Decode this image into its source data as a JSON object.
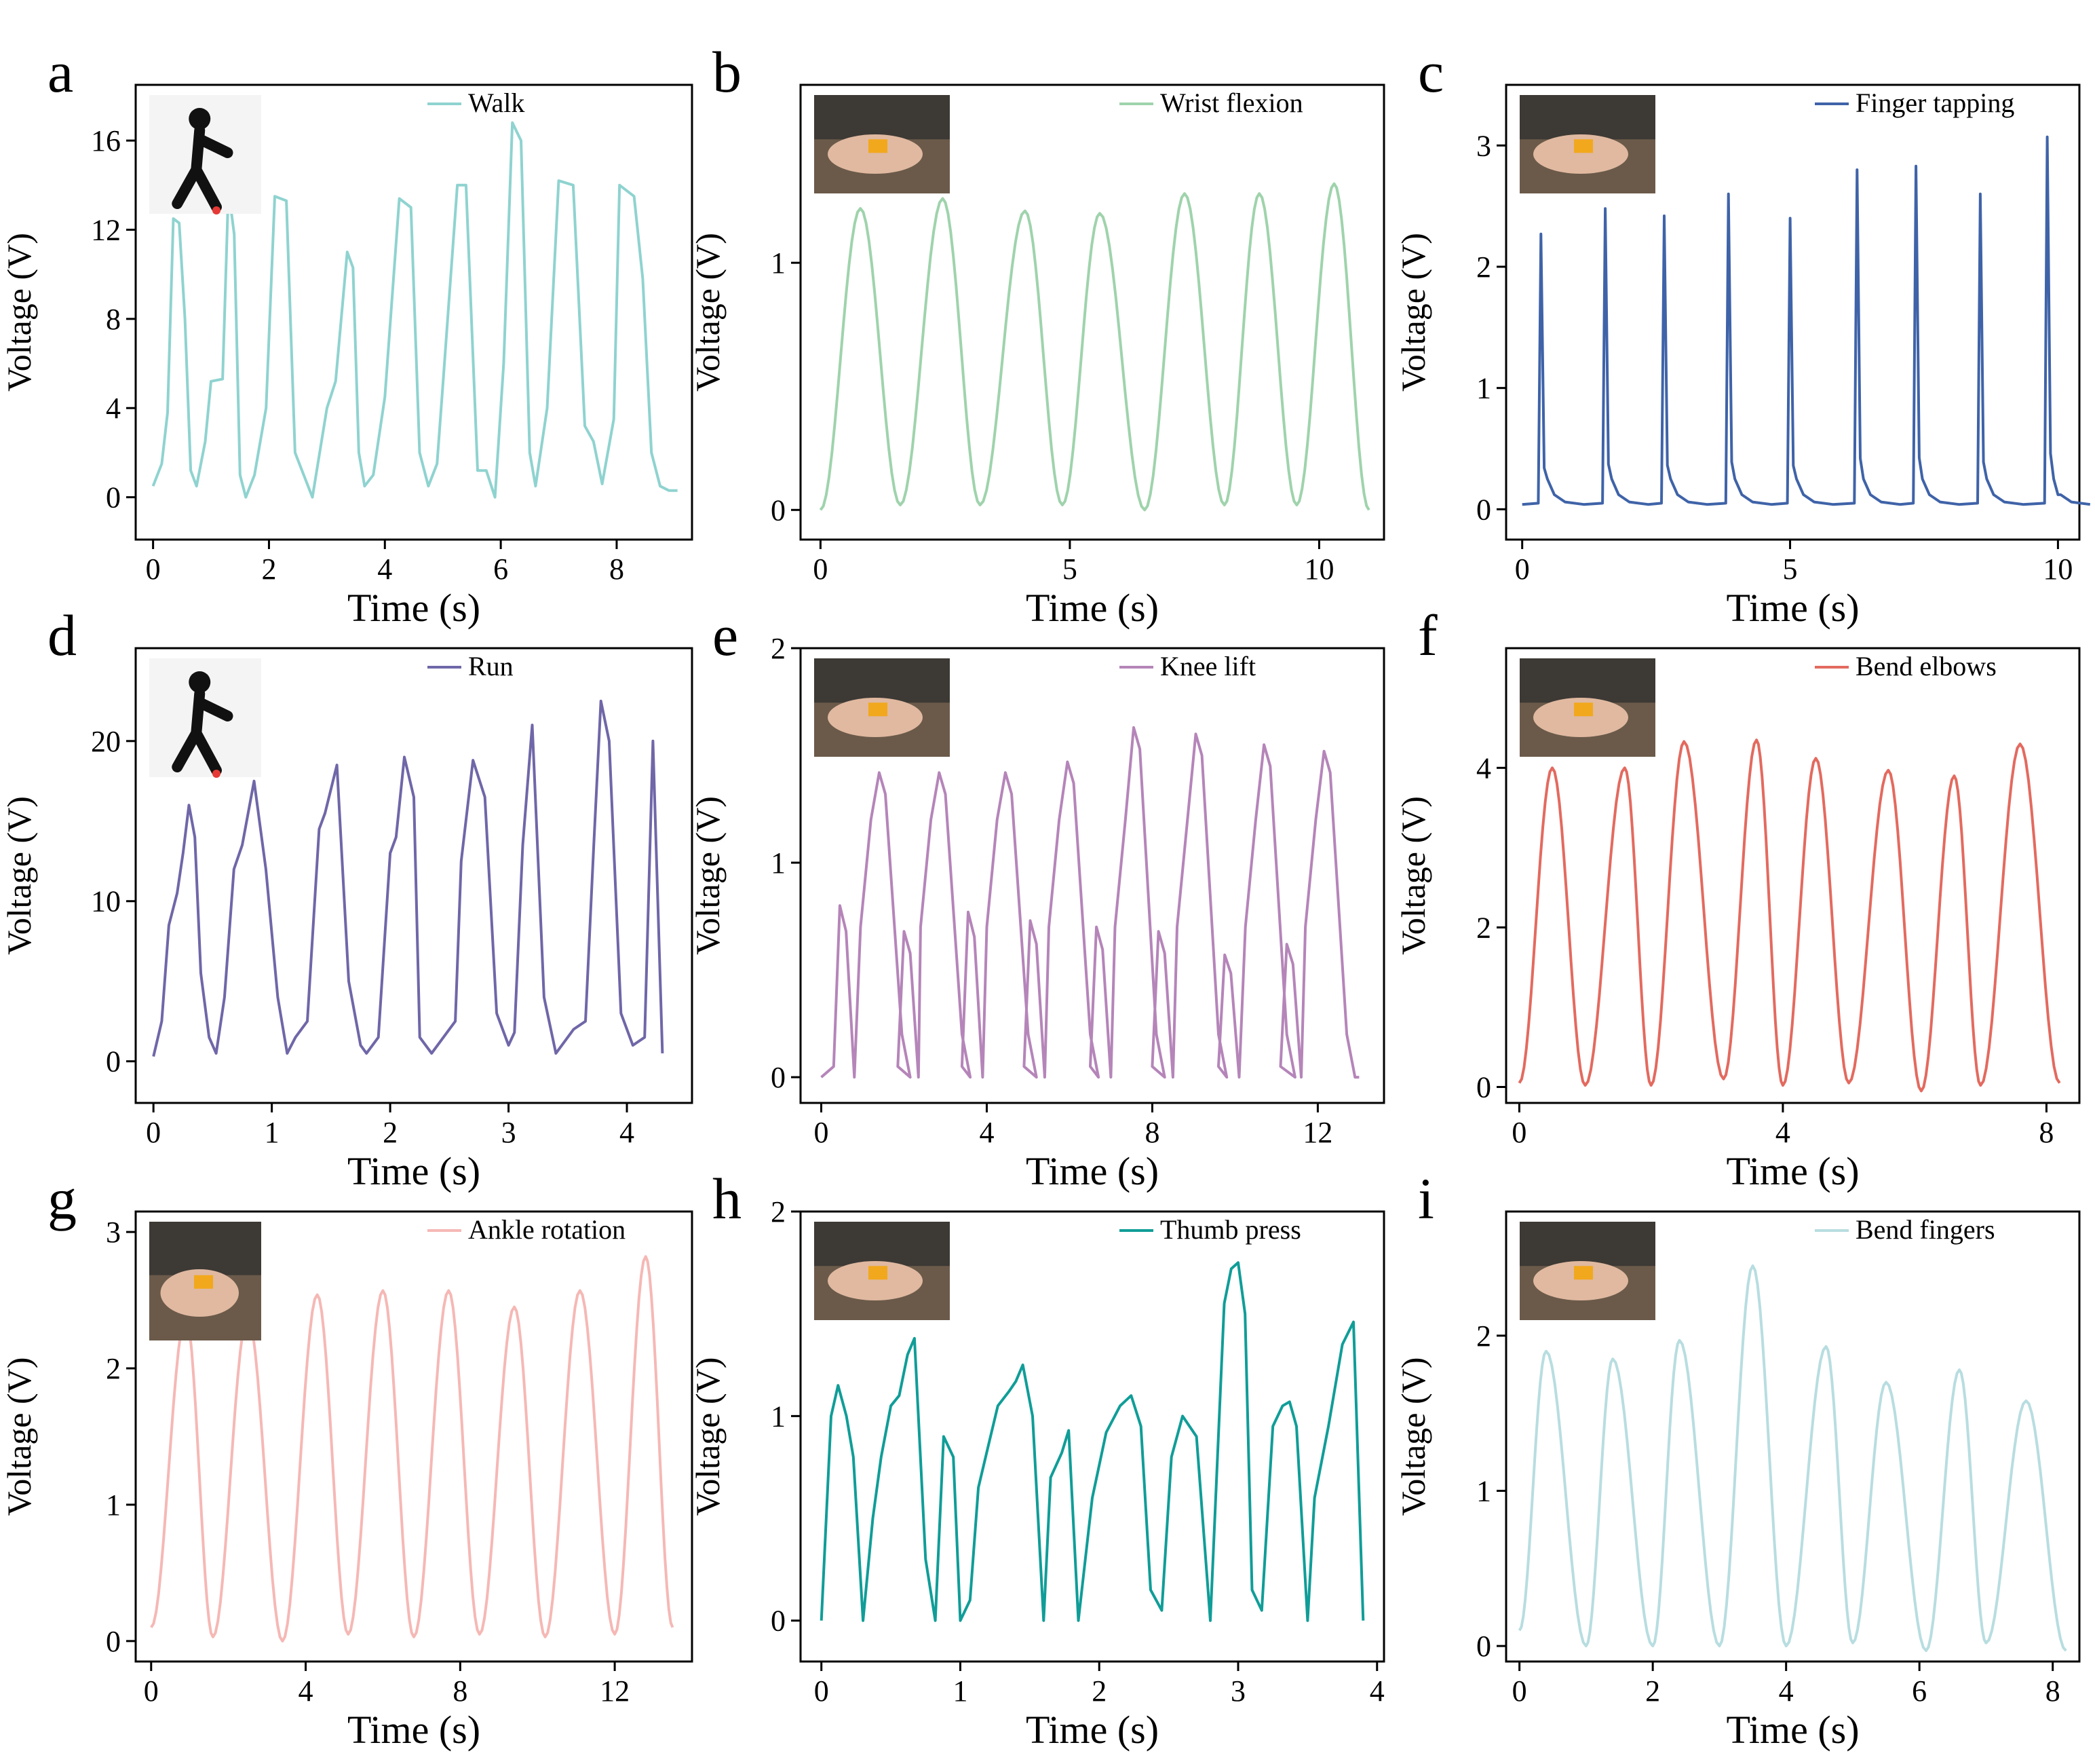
{
  "figure": {
    "description_labels": [
      "a",
      "b",
      "c",
      "d",
      "e",
      "f",
      "g",
      "h",
      "i"
    ]
  },
  "chart_data": [
    {
      "panel": "a",
      "type": "line",
      "legend": "Walk",
      "color": "#8fd3d0",
      "xlabel": "Time (s)",
      "ylabel": "Voltage (V)",
      "xlim": [
        -0.3,
        9.3
      ],
      "ylim": [
        -1.9,
        18.5
      ],
      "xticks": [
        0,
        2,
        4,
        6,
        8
      ],
      "yticks": [
        0,
        4,
        8,
        12,
        16
      ],
      "inset": "walking-person-icon",
      "x": [
        0.0,
        0.15,
        0.25,
        0.35,
        0.45,
        0.55,
        0.65,
        0.75,
        0.9,
        1.0,
        1.2,
        1.3,
        1.4,
        1.5,
        1.6,
        1.75,
        1.95,
        2.1,
        2.3,
        2.45,
        2.6,
        2.75,
        3.0,
        3.15,
        3.35,
        3.45,
        3.55,
        3.65,
        3.8,
        4.0,
        4.25,
        4.45,
        4.6,
        4.75,
        4.9,
        5.0,
        5.25,
        5.4,
        5.6,
        5.75,
        5.9,
        6.05,
        6.2,
        6.35,
        6.5,
        6.6,
        6.8,
        7.0,
        7.25,
        7.45,
        7.6,
        7.75,
        7.95,
        8.05,
        8.3,
        8.45,
        8.6,
        8.75,
        8.9,
        9.05
      ],
      "y": [
        0.5,
        1.5,
        3.8,
        12.5,
        12.3,
        8.0,
        1.2,
        0.5,
        2.5,
        5.2,
        5.3,
        13.8,
        11.8,
        1.0,
        0.0,
        1.0,
        4.0,
        13.5,
        13.3,
        2.0,
        1.0,
        0.0,
        4.0,
        5.2,
        11.0,
        10.3,
        2.0,
        0.5,
        1.0,
        4.5,
        13.4,
        13.0,
        2.0,
        0.5,
        1.5,
        5.0,
        14.0,
        14.0,
        1.2,
        1.2,
        0.0,
        6.0,
        16.8,
        16.0,
        2.0,
        0.5,
        4.0,
        14.2,
        14.0,
        3.2,
        2.5,
        0.6,
        3.5,
        14.0,
        13.5,
        9.8,
        2.0,
        0.5,
        0.3,
        0.3
      ]
    },
    {
      "panel": "b",
      "type": "line",
      "legend": "Wrist flexion",
      "color": "#9fd3ac",
      "xlabel": "Time (s)",
      "ylabel": "Voltage (V)",
      "xlim": [
        -0.4,
        11.3
      ],
      "ylim": [
        -0.12,
        1.72
      ],
      "xticks": [
        0,
        5,
        10
      ],
      "yticks": [
        0,
        1
      ],
      "inset": "wrist-photo",
      "peaks": [
        [
          0.8,
          1.22
        ],
        [
          2.45,
          1.26
        ],
        [
          4.1,
          1.21
        ],
        [
          5.6,
          1.2
        ],
        [
          7.3,
          1.28
        ],
        [
          8.8,
          1.28
        ],
        [
          10.3,
          1.32
        ]
      ],
      "troughs": [
        [
          0.0,
          0.0
        ],
        [
          1.6,
          0.02
        ],
        [
          3.2,
          0.02
        ],
        [
          4.85,
          0.02
        ],
        [
          6.5,
          0.0
        ],
        [
          8.1,
          0.02
        ],
        [
          9.55,
          0.02
        ],
        [
          11.0,
          0.0
        ]
      ]
    },
    {
      "panel": "c",
      "type": "line",
      "legend": "Finger tapping",
      "color": "#3f63a8",
      "xlabel": "Time (s)",
      "ylabel": "Voltage (V)",
      "xlim": [
        -0.3,
        10.4
      ],
      "ylim": [
        -0.25,
        3.5
      ],
      "xticks": [
        0,
        5,
        10
      ],
      "yticks": [
        0,
        1,
        2,
        3
      ],
      "inset": "finger-photo",
      "baseline": 0.04,
      "spikes": [
        [
          0.35,
          2.27
        ],
        [
          1.55,
          2.48
        ],
        [
          2.65,
          2.42
        ],
        [
          3.85,
          2.6
        ],
        [
          5.0,
          2.4
        ],
        [
          6.25,
          2.8
        ],
        [
          7.35,
          2.83
        ],
        [
          8.55,
          2.6
        ],
        [
          9.8,
          3.07
        ]
      ]
    },
    {
      "panel": "d",
      "type": "line",
      "legend": "Run",
      "color": "#6f67a8",
      "xlabel": "Time (s)",
      "ylabel": "Voltage (V)",
      "xlim": [
        -0.15,
        4.55
      ],
      "ylim": [
        -2.6,
        25.8
      ],
      "xticks": [
        0,
        1,
        2,
        3,
        4
      ],
      "yticks": [
        0,
        10,
        20
      ],
      "inset": "running-person-icon",
      "x": [
        0.0,
        0.07,
        0.13,
        0.2,
        0.25,
        0.3,
        0.35,
        0.4,
        0.47,
        0.53,
        0.6,
        0.68,
        0.75,
        0.85,
        0.95,
        1.05,
        1.13,
        1.2,
        1.3,
        1.4,
        1.45,
        1.55,
        1.65,
        1.75,
        1.8,
        1.9,
        2.0,
        2.05,
        2.12,
        2.2,
        2.25,
        2.35,
        2.45,
        2.55,
        2.6,
        2.7,
        2.8,
        2.9,
        3.0,
        3.05,
        3.12,
        3.2,
        3.3,
        3.4,
        3.55,
        3.65,
        3.72,
        3.78,
        3.85,
        3.95,
        4.05,
        4.15,
        4.22,
        4.3
      ],
      "y": [
        0.3,
        2.5,
        8.5,
        10.5,
        13.0,
        16.0,
        14.0,
        5.5,
        1.5,
        0.5,
        4.0,
        12.0,
        13.5,
        17.5,
        12.0,
        4.0,
        0.5,
        1.5,
        2.5,
        14.5,
        15.5,
        18.5,
        5.0,
        1.0,
        0.5,
        1.5,
        13.0,
        14.0,
        19.0,
        16.5,
        1.5,
        0.5,
        1.5,
        2.5,
        12.5,
        18.8,
        16.5,
        3.0,
        1.0,
        1.8,
        13.5,
        21.0,
        4.0,
        0.5,
        2.0,
        2.5,
        13.5,
        22.5,
        20.0,
        3.0,
        1.0,
        1.5,
        20.0,
        0.5
      ]
    },
    {
      "panel": "e",
      "type": "line",
      "legend": "Knee lift",
      "color": "#b585b9",
      "xlabel": "Time (s)",
      "ylabel": "Voltage (V)",
      "xlim": [
        -0.5,
        13.6
      ],
      "ylim": [
        -0.12,
        2.0
      ],
      "xticks": [
        0,
        4,
        8,
        12
      ],
      "yticks": [
        0,
        1,
        2
      ],
      "inset": "knee-photo",
      "cycles": [
        [
          0.5,
          0.8,
          1.4
        ],
        [
          2.05,
          0.68,
          2.85
        ],
        [
          3.6,
          0.77,
          4.45
        ],
        [
          5.1,
          0.73,
          5.95
        ],
        [
          6.7,
          0.7,
          7.55
        ],
        [
          8.2,
          0.68,
          9.05
        ],
        [
          9.8,
          0.57,
          10.7
        ],
        [
          11.3,
          0.62,
          12.15
        ]
      ],
      "start": 0.0,
      "end_x": 13.0
    },
    {
      "panel": "f",
      "type": "line",
      "legend": "Bend elbows",
      "color": "#e36a5f",
      "xlabel": "Time (s)",
      "ylabel": "Voltage (V)",
      "xlim": [
        -0.2,
        8.5
      ],
      "ylim": [
        -0.2,
        5.5
      ],
      "xticks": [
        0,
        4,
        8
      ],
      "yticks": [
        0,
        2,
        4
      ],
      "inset": "elbow-photo",
      "peaks": [
        [
          0.5,
          4.0
        ],
        [
          1.6,
          4.0
        ],
        [
          2.5,
          4.33
        ],
        [
          3.6,
          4.35
        ],
        [
          4.5,
          4.12
        ],
        [
          5.6,
          3.97
        ],
        [
          6.6,
          3.9
        ],
        [
          7.6,
          4.3
        ]
      ],
      "troughs": [
        [
          0.0,
          0.05
        ],
        [
          1.0,
          0.02
        ],
        [
          2.0,
          0.02
        ],
        [
          3.1,
          0.1
        ],
        [
          4.0,
          0.02
        ],
        [
          5.0,
          0.05
        ],
        [
          6.1,
          -0.05
        ],
        [
          7.0,
          0.02
        ],
        [
          8.2,
          0.05
        ]
      ]
    },
    {
      "panel": "g",
      "type": "line",
      "legend": "Ankle rotation",
      "color": "#f5b8b5",
      "xlabel": "Time (s)",
      "ylabel": "Voltage (V)",
      "xlim": [
        -0.4,
        14.0
      ],
      "ylim": [
        -0.15,
        3.15
      ],
      "xticks": [
        0,
        4,
        8,
        12
      ],
      "yticks": [
        0,
        1,
        2,
        3
      ],
      "inset": "shoe-photo",
      "peaks": [
        [
          0.9,
          2.38
        ],
        [
          2.5,
          2.38
        ],
        [
          4.3,
          2.54
        ],
        [
          6.0,
          2.57
        ],
        [
          7.7,
          2.57
        ],
        [
          9.4,
          2.45
        ],
        [
          11.1,
          2.57
        ],
        [
          12.8,
          2.82
        ]
      ],
      "troughs": [
        [
          0.0,
          0.1
        ],
        [
          1.6,
          0.03
        ],
        [
          3.4,
          0.0
        ],
        [
          5.1,
          0.05
        ],
        [
          6.8,
          0.03
        ],
        [
          8.5,
          0.05
        ],
        [
          10.2,
          0.03
        ],
        [
          12.0,
          0.05
        ],
        [
          13.5,
          0.1
        ]
      ]
    },
    {
      "panel": "h",
      "type": "line",
      "legend": "Thumb press",
      "color": "#109d98",
      "xlabel": "Time (s)",
      "ylabel": "Voltage (V)",
      "xlim": [
        -0.15,
        4.05
      ],
      "ylim": [
        -0.2,
        2.0
      ],
      "xticks": [
        0,
        1,
        2,
        3,
        4
      ],
      "yticks": [
        0,
        1,
        2
      ],
      "inset": "thumb-photo",
      "x": [
        0.0,
        0.07,
        0.12,
        0.18,
        0.23,
        0.3,
        0.37,
        0.43,
        0.5,
        0.56,
        0.62,
        0.67,
        0.75,
        0.82,
        0.88,
        0.95,
        1.0,
        1.07,
        1.13,
        1.2,
        1.27,
        1.35,
        1.4,
        1.45,
        1.52,
        1.6,
        1.65,
        1.73,
        1.78,
        1.85,
        1.95,
        2.05,
        2.15,
        2.23,
        2.3,
        2.37,
        2.45,
        2.52,
        2.6,
        2.7,
        2.8,
        2.9,
        2.95,
        3.0,
        3.05,
        3.1,
        3.17,
        3.25,
        3.32,
        3.37,
        3.42,
        3.5,
        3.55,
        3.65,
        3.75,
        3.83,
        3.9
      ],
      "y": [
        0.0,
        1.0,
        1.15,
        1.0,
        0.8,
        0.0,
        0.5,
        0.8,
        1.05,
        1.1,
        1.3,
        1.38,
        0.3,
        0.0,
        0.9,
        0.8,
        0.0,
        0.1,
        0.65,
        0.85,
        1.05,
        1.12,
        1.17,
        1.25,
        1.0,
        0.0,
        0.7,
        0.82,
        0.93,
        0.0,
        0.6,
        0.92,
        1.05,
        1.1,
        0.95,
        0.15,
        0.05,
        0.8,
        1.0,
        0.9,
        0.0,
        1.55,
        1.72,
        1.75,
        1.5,
        0.15,
        0.05,
        0.95,
        1.05,
        1.07,
        0.95,
        0.0,
        0.6,
        0.95,
        1.35,
        1.46,
        0.0
      ]
    },
    {
      "panel": "i",
      "type": "line",
      "legend": "Bend fingers",
      "color": "#b8dde0",
      "xlabel": "Time (s)",
      "ylabel": "Voltage (V)",
      "xlim": [
        -0.2,
        8.4
      ],
      "ylim": [
        -0.1,
        2.8
      ],
      "xticks": [
        0,
        2,
        4,
        6,
        8
      ],
      "yticks": [
        0,
        1,
        2
      ],
      "inset": "hand-photo",
      "peaks": [
        [
          0.4,
          1.9
        ],
        [
          1.4,
          1.85
        ],
        [
          2.4,
          1.97
        ],
        [
          3.5,
          2.45
        ],
        [
          4.6,
          1.93
        ],
        [
          5.5,
          1.7
        ],
        [
          6.6,
          1.78
        ],
        [
          7.6,
          1.58
        ]
      ],
      "troughs": [
        [
          0.0,
          0.1
        ],
        [
          1.0,
          0.0
        ],
        [
          2.0,
          0.0
        ],
        [
          3.0,
          0.0
        ],
        [
          4.0,
          0.0
        ],
        [
          5.0,
          0.02
        ],
        [
          6.1,
          -0.03
        ],
        [
          7.0,
          0.02
        ],
        [
          8.2,
          -0.03
        ]
      ]
    }
  ]
}
